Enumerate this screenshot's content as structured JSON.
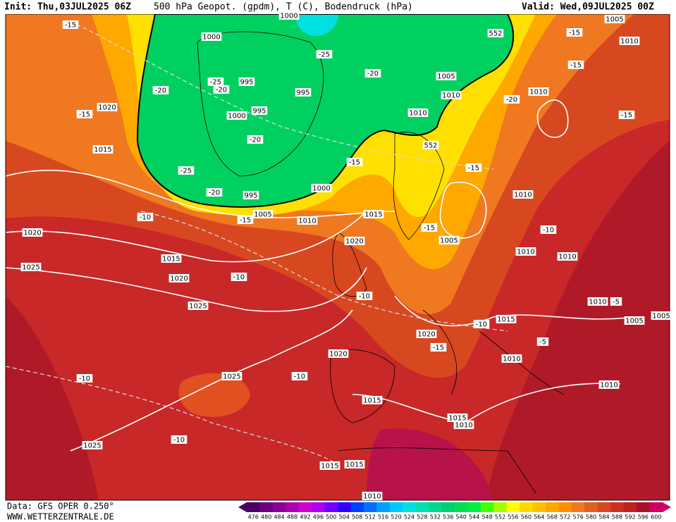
{
  "header": {
    "init": "Init: Thu,03JUL2025 06Z",
    "title": "500 hPa Geopot. (gpdm), T (C), Bodendruck (hPa)",
    "valid": "Valid: Wed,09JUL2025 00Z"
  },
  "footer": {
    "data": "Data: GFS OPER 0.250°",
    "site": "WWW.WETTERZENTRALE.DE"
  },
  "legend": {
    "values": [
      476,
      480,
      484,
      488,
      492,
      496,
      500,
      504,
      508,
      512,
      516,
      520,
      524,
      528,
      532,
      536,
      540,
      544,
      548,
      552,
      556,
      560,
      564,
      568,
      572,
      576,
      580,
      584,
      588,
      592,
      596,
      600
    ],
    "colors": [
      "#4b0066",
      "#6a0080",
      "#8a0099",
      "#b000b0",
      "#d000d0",
      "#b000f0",
      "#7000ff",
      "#3000ff",
      "#0040ff",
      "#0070ff",
      "#00a0ff",
      "#00c8ff",
      "#00e0e0",
      "#00e0b0",
      "#00d890",
      "#00d070",
      "#00e050",
      "#00f040",
      "#40ff00",
      "#a0ff00",
      "#ffff00",
      "#ffd800",
      "#ffc000",
      "#ffa800",
      "#ff9000",
      "#f07820",
      "#e06020",
      "#d84820",
      "#d03020",
      "#c02020",
      "#a81030",
      "#d00060"
    ]
  },
  "contour_labels": [
    "-15",
    "1000",
    "1000",
    "-25",
    "552",
    "-15",
    "1005",
    "1010",
    "-15",
    "-20",
    "-25",
    "-20",
    "995",
    "995",
    "-20",
    "1005",
    "1010",
    "-20",
    "1010",
    "1020",
    "-15",
    "995",
    "1000",
    "1010",
    "-15",
    "-20",
    "552",
    "1015",
    "-25",
    "-15",
    "-15",
    "1000",
    "-20",
    "995",
    "1010",
    "-10",
    "1005",
    "-15",
    "1010",
    "1015",
    "-15",
    "-10",
    "1020",
    "1005",
    "1020",
    "1010",
    "1010",
    "1025",
    "1015",
    "-10",
    "1020",
    "-10",
    "1025",
    "1010",
    "-5",
    "1015",
    "-10",
    "1005",
    "1005",
    "1020",
    "-5",
    "-15",
    "1020",
    "1010",
    "-10",
    "1025",
    "-10",
    "1010",
    "1015",
    "1015",
    "1010",
    "1025",
    "-10",
    "1015",
    "1015",
    "1010"
  ]
}
